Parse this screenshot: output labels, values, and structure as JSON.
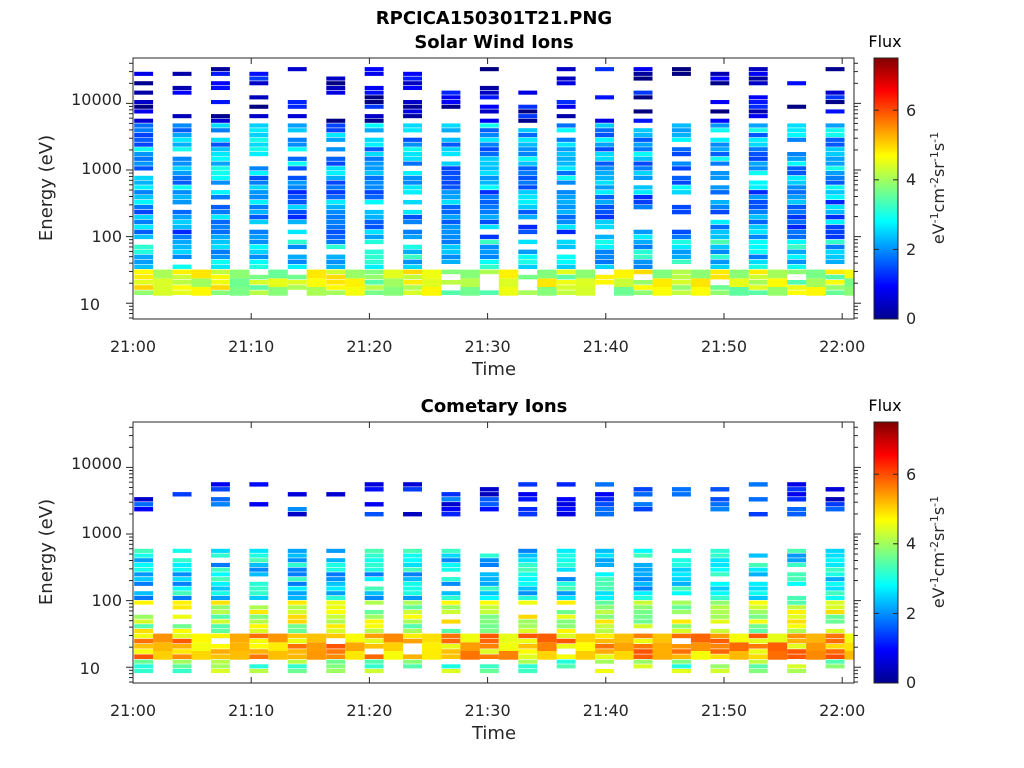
{
  "figure_title": "RPCICA150301T21.PNG",
  "colormap": "jet",
  "chart_data": [
    {
      "type": "heatmap",
      "title": "Solar Wind Ions",
      "xlabel": "Time",
      "ylabel": "Energy (eV)",
      "x_ticks": [
        "21:00",
        "21:10",
        "21:20",
        "21:30",
        "21:40",
        "21:50",
        "22:00"
      ],
      "x_range": [
        "21:00",
        "22:01"
      ],
      "y_scale": "log",
      "y_ticks": [
        10,
        100,
        1000,
        10000
      ],
      "y_tick_labels": [
        "10",
        "100",
        "1000",
        "10000"
      ],
      "ylim": [
        5.8,
        48000
      ],
      "colorbar": {
        "title": "Flux",
        "unit_text": "eV-1cm-2sr-1s-1",
        "range": [
          0,
          7.5
        ],
        "ticks": [
          0,
          2,
          4,
          6
        ],
        "tick_labels": [
          "0",
          "2",
          "4",
          "6"
        ]
      },
      "bands": [
        {
          "energy_range": [
            13,
            32
          ],
          "flux": 4.2
        },
        {
          "energy_range": [
            32,
            90
          ],
          "flux": 2.6
        },
        {
          "energy_range": [
            90,
            500
          ],
          "flux": 2.0
        },
        {
          "energy_range": [
            500,
            5000
          ],
          "flux": 2.2
        },
        {
          "energy_range": [
            5000,
            35000
          ],
          "flux": 0.6
        }
      ]
    },
    {
      "type": "heatmap",
      "title": "Cometary Ions",
      "xlabel": "Time",
      "ylabel": "Energy (eV)",
      "x_ticks": [
        "21:00",
        "21:10",
        "21:20",
        "21:30",
        "21:40",
        "21:50",
        "22:00"
      ],
      "x_range": [
        "21:00",
        "22:01"
      ],
      "y_scale": "log",
      "y_ticks": [
        10,
        100,
        1000,
        10000
      ],
      "y_tick_labels": [
        "10",
        "100",
        "1000",
        "10000"
      ],
      "ylim": [
        5.8,
        48000
      ],
      "colorbar": {
        "title": "Flux",
        "unit_text": "eV-1cm-2sr-1s-1",
        "range": [
          0,
          7.5
        ],
        "ticks": [
          0,
          2,
          4,
          6
        ],
        "tick_labels": [
          "0",
          "2",
          "4",
          "6"
        ]
      },
      "bands": [
        {
          "energy_range": [
            8,
            13
          ],
          "flux": 3.8
        },
        {
          "energy_range": [
            13,
            32
          ],
          "flux": 5.2
        },
        {
          "energy_range": [
            32,
            100
          ],
          "flux": 4.2
        },
        {
          "energy_range": [
            100,
            600
          ],
          "flux": 2.6
        },
        {
          "energy_range": [
            1800,
            6000
          ],
          "flux": 1.2
        }
      ]
    }
  ]
}
